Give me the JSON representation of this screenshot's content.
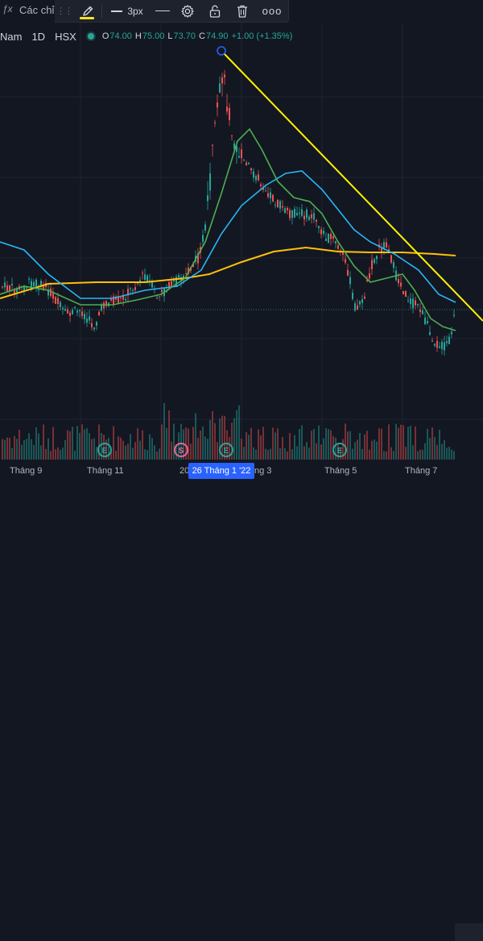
{
  "toolbar": {
    "fx_symbol": "ƒx",
    "indicators_label": "Các chỉ",
    "stroke_width_label": "3px",
    "more_label": "ooo",
    "pen_underline_color": "#f5e31b"
  },
  "legend": {
    "symbol_name": "Nam",
    "interval": "1D",
    "exchange": "HSX",
    "open_label": "O",
    "open": "74.00",
    "high_label": "H",
    "high": "75.00",
    "low_label": "L",
    "low": "73.70",
    "close_label": "C",
    "close": "74.90",
    "change": "+1.00 (+1.35%)",
    "up_color": "#26a69a"
  },
  "time_axis": {
    "labels": [
      "Tháng 9",
      "Tháng 11",
      "20",
      "ng 3",
      "Tháng 5",
      "Tháng 7"
    ],
    "highlight": "26 Tháng 1 '22"
  },
  "events": [
    {
      "type": "earnings",
      "letter": "E"
    },
    {
      "type": "split",
      "letter": "S"
    },
    {
      "type": "earnings",
      "letter": "E"
    },
    {
      "type": "earnings",
      "letter": "E"
    }
  ],
  "colors": {
    "background": "#131722",
    "bull": "#26a69a",
    "bear": "#ef5350",
    "ma_short": "#4caf50",
    "ma_mid": "#29b6f6",
    "ma_long": "#ffc107",
    "trendline": "#fff200"
  }
}
